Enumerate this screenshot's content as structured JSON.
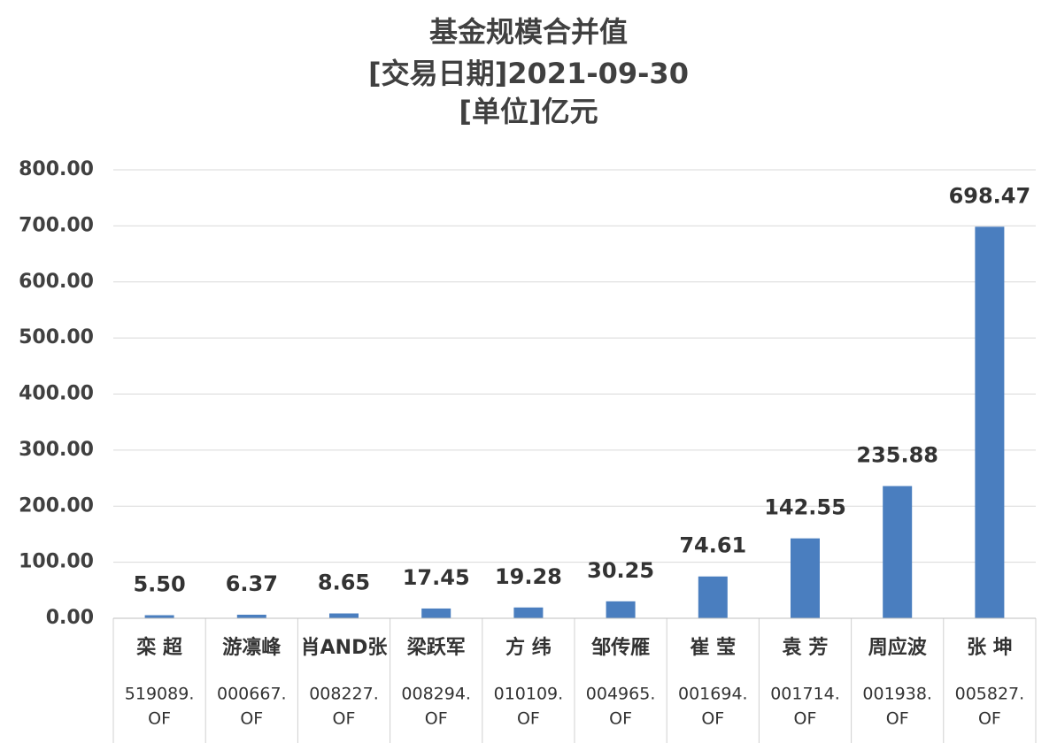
{
  "chart_data": {
    "type": "bar",
    "title": "基金规模合并值",
    "subtitle": [
      "[交易日期]2021-09-30",
      "[单位]亿元"
    ],
    "categories": [
      "栾 超",
      "游凛峰",
      "肖AND张",
      "梁跃军",
      "方 纬",
      "邹传雁",
      "崔 莹",
      "袁 芳",
      "周应波",
      "张 坤"
    ],
    "category_codes": [
      [
        "519089.",
        "OF"
      ],
      [
        "000667.",
        "OF"
      ],
      [
        "008227.",
        "OF"
      ],
      [
        "008294.",
        "OF"
      ],
      [
        "010109.",
        "OF"
      ],
      [
        "004965.",
        "OF"
      ],
      [
        "001694.",
        "OF"
      ],
      [
        "001714.",
        "OF"
      ],
      [
        "001938.",
        "OF"
      ],
      [
        "005827.",
        "OF"
      ]
    ],
    "values": [
      5.5,
      6.37,
      8.65,
      17.45,
      19.28,
      30.25,
      74.61,
      142.55,
      235.88,
      698.47
    ],
    "value_labels": [
      "5.50",
      "6.37",
      "8.65",
      "17.45",
      "19.28",
      "30.25",
      "74.61",
      "142.55",
      "235.88",
      "698.47"
    ],
    "color": "#4a7ebf",
    "ylim": [
      0,
      800
    ],
    "yticks": [
      {
        "value": 0,
        "label": "0.00"
      },
      {
        "value": 100,
        "label": "100.00"
      },
      {
        "value": 200,
        "label": "200.00"
      },
      {
        "value": 300,
        "label": "300.00"
      },
      {
        "value": 400,
        "label": "400.00"
      },
      {
        "value": 500,
        "label": "500.00"
      },
      {
        "value": 600,
        "label": "600.00"
      },
      {
        "value": 700,
        "label": "700.00"
      },
      {
        "value": 800,
        "label": "800.00"
      }
    ],
    "grid": true
  }
}
